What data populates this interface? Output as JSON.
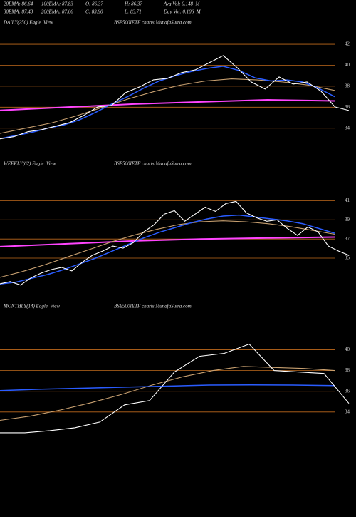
{
  "header": {
    "rows": [
      [
        "20EMA: 86.64",
        "100EMA: 87.83",
        "O: 86.37",
        "H: 86.37",
        "Avg Vol: 0.148  M"
      ],
      [
        "30EMA: 87.43",
        "200EMA: 87.06",
        "C: 83.90",
        "L: 83.71",
        "Day Vol: 0.106  M"
      ]
    ]
  },
  "chart_data": [
    {
      "type": "line",
      "title": "DAILY(250) Eagle  View",
      "subtitle": "BSE500IETF charts MunafaSutra.com",
      "ylim": [
        31.6,
        43.5
      ],
      "yticks": [
        34,
        36,
        38,
        40,
        42
      ],
      "grid": true,
      "series": [
        {
          "color": "#ff44ff",
          "values": [
            35.7,
            36.0,
            36.3,
            36.5,
            36.7,
            36.6
          ]
        },
        {
          "color": "#c8a070",
          "values": [
            33.5,
            34.0,
            34.5,
            35.2,
            36.0,
            36.8,
            37.5,
            38.1,
            38.5,
            38.7,
            38.6,
            38.4,
            38.1,
            37.6
          ]
        },
        {
          "color": "#2a5cff",
          "values": [
            33.0,
            33.3,
            33.6,
            34.0,
            34.3,
            34.8,
            35.5,
            36.3,
            37.0,
            37.8,
            38.5,
            39.0,
            39.4,
            39.7,
            39.9,
            39.5,
            38.8,
            38.5,
            38.6,
            38.4,
            37.8,
            37.0
          ]
        },
        {
          "color": "#ffffff",
          "values": [
            32.98,
            33.19,
            33.66,
            33.86,
            34.2,
            34.54,
            35.22,
            36.03,
            36.17,
            37.39,
            37.93,
            38.61,
            38.75,
            39.29,
            39.56,
            40.24,
            40.92,
            39.76,
            38.41,
            37.73,
            38.88,
            38.2,
            38.41,
            37.53,
            36.03,
            35.69
          ]
        }
      ]
    },
    {
      "type": "line",
      "title": "WEEKLY(62) Eagle  View",
      "subtitle": "BSE500IETF charts MunafaSutra.com",
      "ylim": [
        31.8,
        42.6
      ],
      "yticks": [
        35,
        37,
        39,
        41
      ],
      "grid": true,
      "series": [
        {
          "color": "#ff44ff",
          "values": [
            36.2,
            36.5,
            36.8,
            37.0,
            37.1,
            37.2
          ]
        },
        {
          "color": "#c8a070",
          "values": [
            33.0,
            33.6,
            34.3,
            35.1,
            35.9,
            36.7,
            37.4,
            38.0,
            38.5,
            38.8,
            38.9,
            38.8,
            38.6,
            38.3,
            37.9,
            37.5
          ]
        },
        {
          "color": "#2a5cff",
          "values": [
            32.3,
            32.5,
            32.9,
            33.3,
            33.8,
            34.4,
            35.0,
            35.7,
            36.4,
            37.1,
            37.7,
            38.2,
            38.7,
            39.1,
            39.4,
            39.5,
            39.3,
            39.1,
            38.9,
            38.6,
            38.1,
            37.6
          ]
        },
        {
          "color": "#ffffff",
          "values": [
            32.33,
            32.56,
            32.19,
            32.93,
            33.44,
            33.81,
            34.04,
            33.67,
            34.56,
            35.3,
            35.74,
            36.26,
            36.04,
            36.63,
            37.74,
            38.48,
            39.59,
            39.96,
            38.85,
            39.59,
            40.33,
            39.89,
            40.7,
            40.93,
            39.74,
            39.22,
            38.85,
            39.0,
            38.11,
            37.37,
            38.26,
            37.74,
            36.26,
            35.74,
            35.3
          ]
        }
      ]
    },
    {
      "type": "line",
      "title": "MONTHLY(14) Eagle  View",
      "subtitle": "BSE500IETF charts MunafaSutra.com",
      "ylim": [
        31.1,
        42.1
      ],
      "yticks": [
        34,
        36,
        38,
        40
      ],
      "grid": true,
      "series": [
        {
          "color": "#c8a070",
          "values": [
            33.2,
            33.6,
            34.2,
            34.9,
            35.7,
            36.6,
            37.4,
            38.0,
            38.4,
            38.3,
            38.2,
            38.0
          ]
        },
        {
          "color": "#2a5cff",
          "values": [
            36.07,
            36.2,
            36.3,
            36.4,
            36.5,
            36.6,
            36.62,
            36.6,
            36.55
          ]
        },
        {
          "color": "#ffffff",
          "values": [
            32.0,
            32.0,
            32.21,
            32.48,
            33.03,
            34.69,
            35.1,
            37.86,
            39.38,
            39.66,
            40.55,
            38.0,
            37.86,
            37.72,
            34.83
          ]
        }
      ]
    }
  ]
}
